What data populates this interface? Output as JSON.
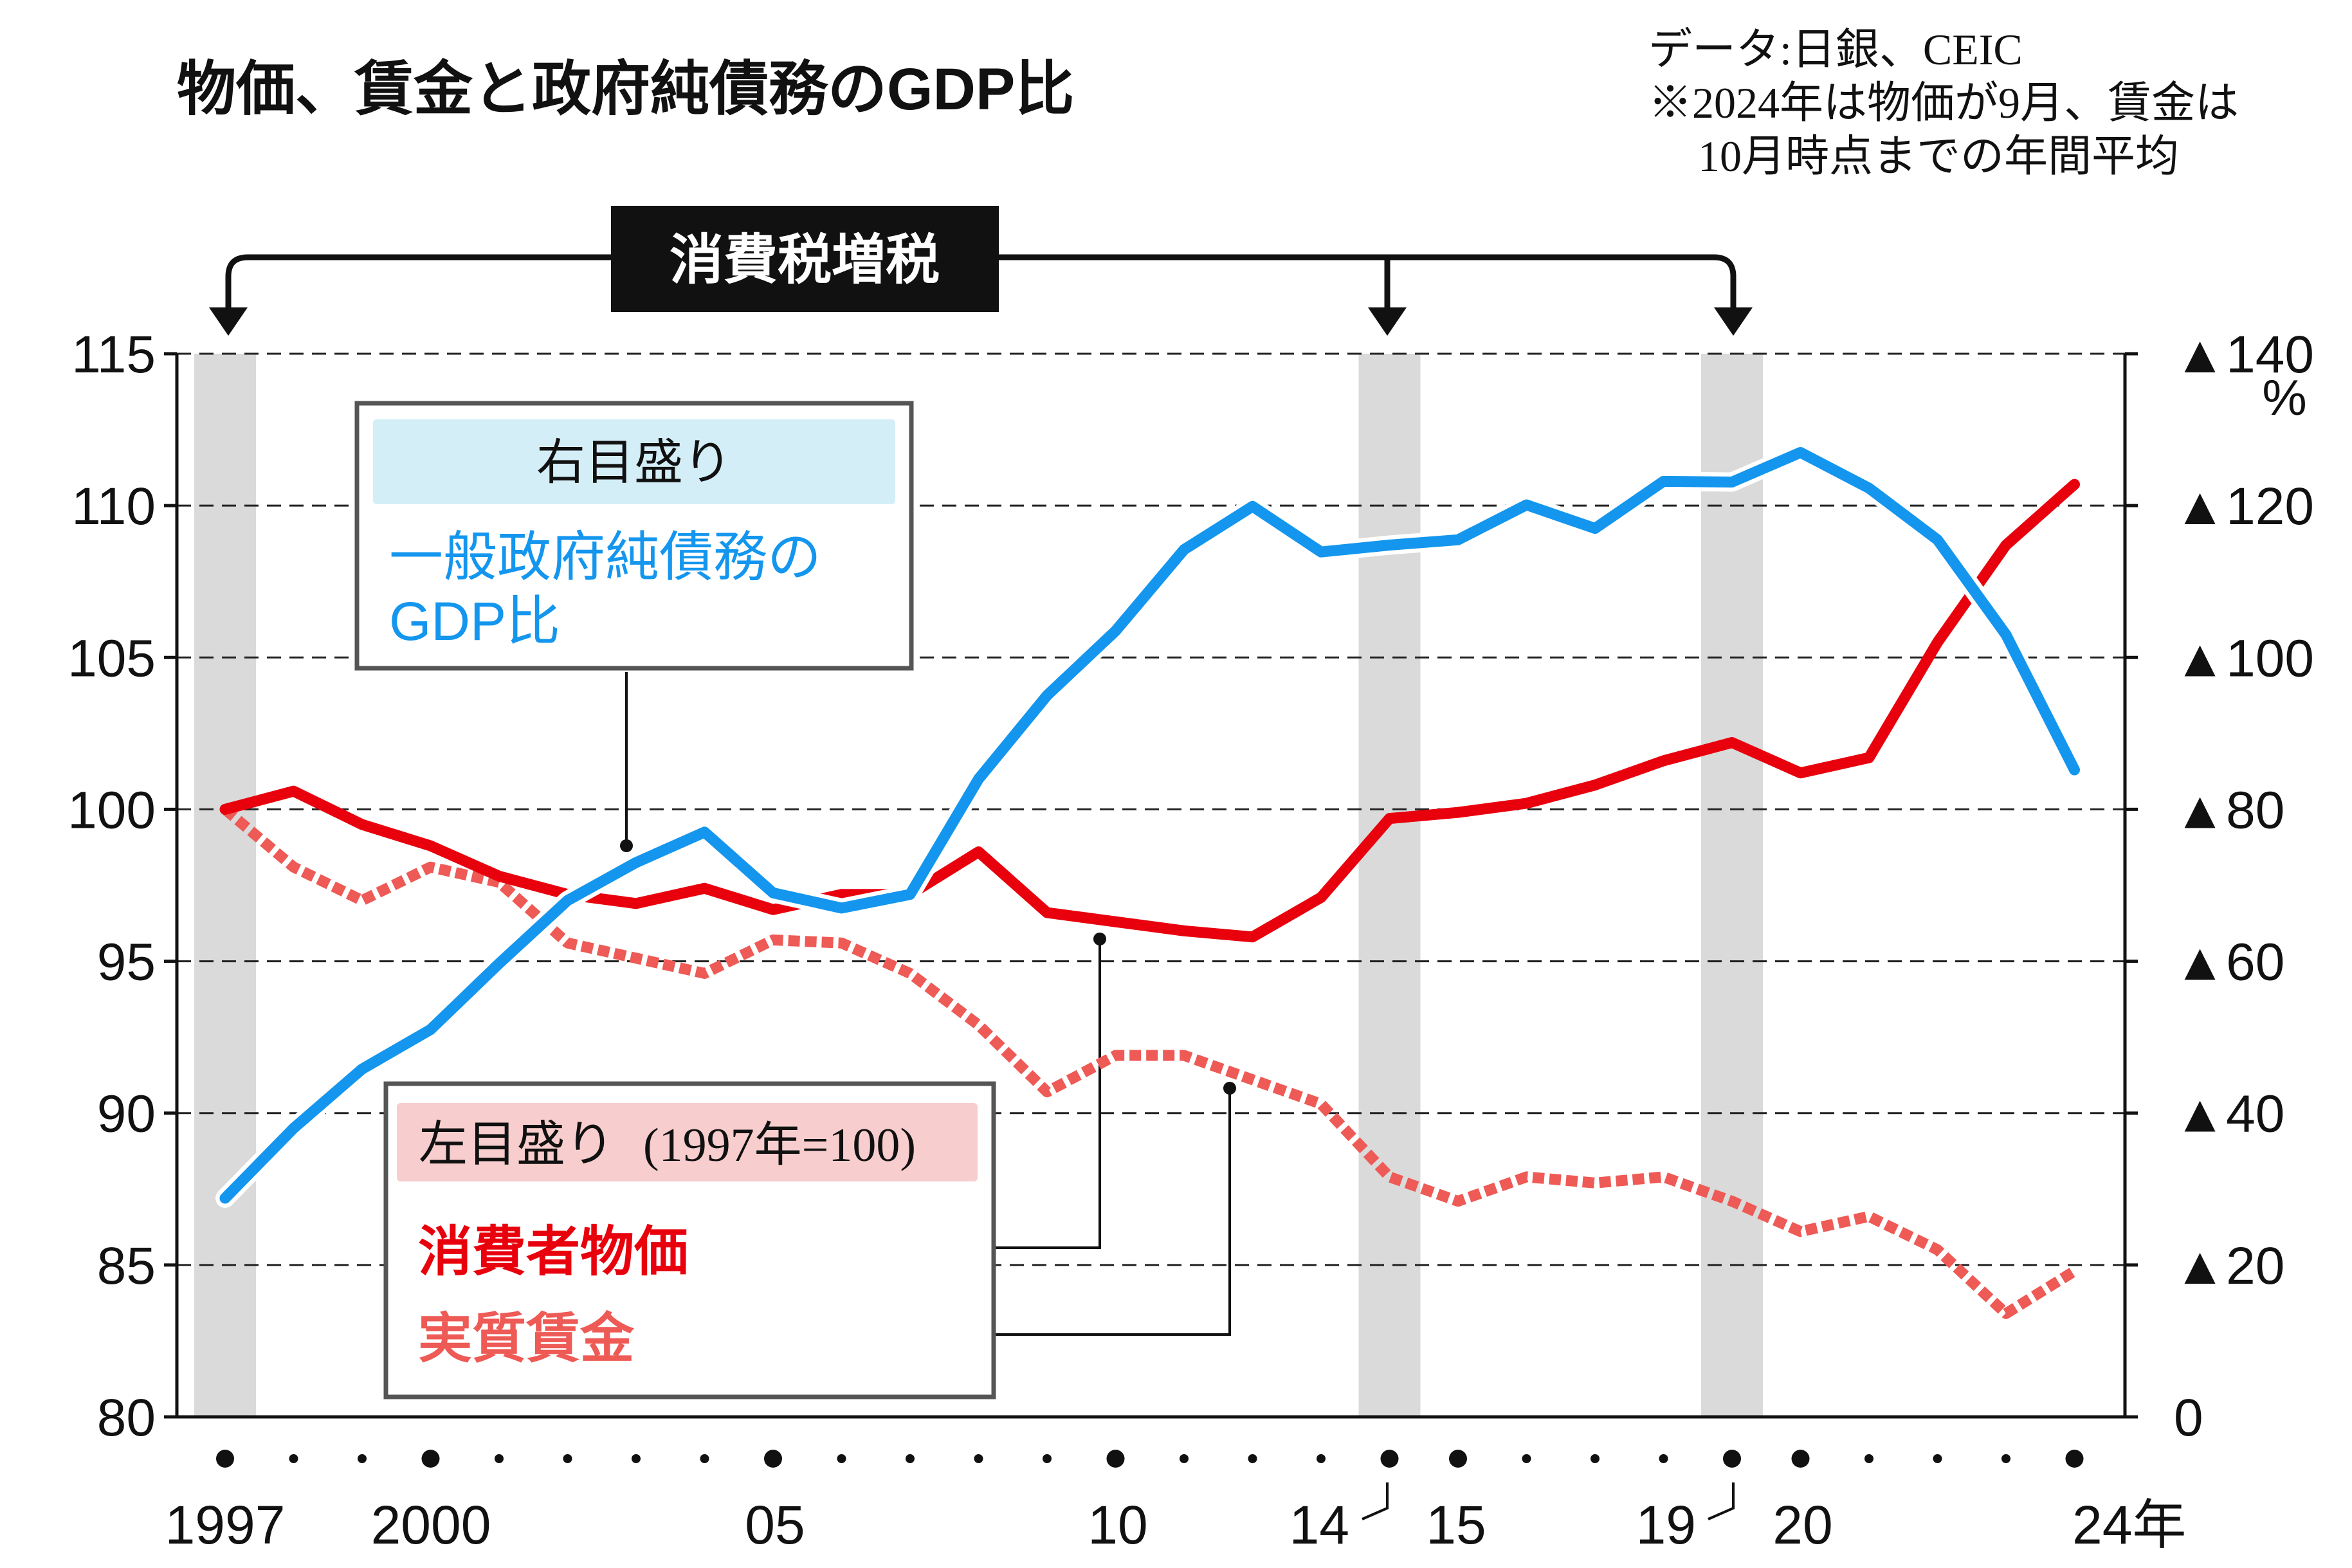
{
  "title": "物価、賃金と政府純債務のGDP比",
  "source_lines": [
    "データ:日銀、CEIC",
    "※2024年は物価が9月、賃金は",
    "10月時点までの年間平均"
  ],
  "tax_label": "消費税増税",
  "right_box": {
    "title": "右目盛り",
    "line1": "一般政府純債務の",
    "line2": "GDP比"
  },
  "left_box": {
    "title": "左目盛り",
    "note": "(1997年=100)",
    "cpi_label": "消費者物価",
    "wage_label": "実質賃金"
  },
  "colors": {
    "cpi": "#e8000d",
    "wage": "#ee5a55",
    "debt": "#1496ee",
    "right_box_bg": "#d4eef8",
    "left_box_bg": "#f7cdcd",
    "band": "#d3d3d3",
    "dark": "#111111"
  },
  "chart_data": {
    "type": "line",
    "title": "物価、賃金と政府純債務のGDP比",
    "x": [
      1997,
      1998,
      1999,
      2000,
      2001,
      2002,
      2003,
      2004,
      2005,
      2006,
      2007,
      2008,
      2009,
      2010,
      2011,
      2012,
      2013,
      2014,
      2015,
      2016,
      2017,
      2018,
      2019,
      2020,
      2021,
      2022,
      2023,
      2024
    ],
    "series": [
      {
        "name": "消費者物価",
        "axis": "left",
        "style": "solid",
        "values": [
          100.0,
          100.6,
          99.5,
          98.8,
          97.8,
          97.2,
          96.9,
          97.4,
          96.7,
          97.2,
          97.2,
          98.6,
          96.6,
          96.3,
          96.0,
          95.8,
          97.1,
          99.7,
          99.9,
          100.2,
          100.8,
          101.6,
          102.2,
          101.2,
          101.7,
          105.5,
          108.7,
          110.7
        ]
      },
      {
        "name": "実質賃金",
        "axis": "left",
        "style": "dashed",
        "values": [
          100.0,
          98.1,
          97.0,
          98.1,
          97.6,
          95.6,
          95.1,
          94.6,
          95.7,
          95.6,
          94.6,
          92.9,
          90.7,
          91.9,
          91.9,
          91.1,
          90.3,
          87.9,
          87.1,
          87.9,
          87.7,
          87.9,
          87.1,
          86.1,
          86.6,
          85.5,
          83.4,
          84.8
        ]
      },
      {
        "name": "一般政府純債務のGDP比",
        "axis": "right",
        "style": "solid",
        "values": [
          28.8,
          38.0,
          45.8,
          51.0,
          59.7,
          68.0,
          73.0,
          77.0,
          69.0,
          67.0,
          68.8,
          84.0,
          95.0,
          103.5,
          114.2,
          119.9,
          113.9,
          114.8,
          115.5,
          120.1,
          117.0,
          123.2,
          123.1,
          127.0,
          122.3,
          115.5,
          103.0,
          85.2
        ]
      }
    ],
    "left_axis": {
      "ylim": [
        80,
        115
      ],
      "ticks": [
        "80",
        "85",
        "90",
        "95",
        "100",
        "105",
        "110",
        "115"
      ]
    },
    "right_axis": {
      "ylim": [
        0,
        140
      ],
      "ticks": [
        "0",
        "▲20",
        "▲40",
        "▲60",
        "▲80",
        "▲100",
        "▲120",
        "▲140"
      ],
      "unit": "%"
    },
    "x_ticks": [
      "1997",
      "2000",
      "05",
      "10",
      "14",
      "15",
      "19",
      "20",
      "24年"
    ],
    "tax_increase_years": [
      1997,
      2014,
      2019
    ],
    "grid": "dashed horizontal"
  }
}
